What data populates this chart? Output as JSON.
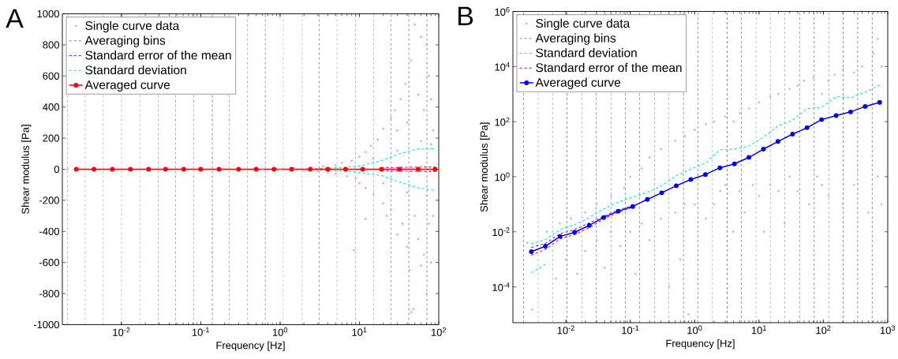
{
  "chart_data": [
    {
      "type": "line",
      "title": "A",
      "xlabel": "Frequency [Hz]",
      "ylabel": "Shear modulus [Pa]",
      "log": "x",
      "legend": "top left",
      "xlim": [
        0.0018,
        100
      ],
      "ylim": [
        -1000,
        1000
      ],
      "xticks": [
        {
          "value": 0.01,
          "label": "10$^{-2}$"
        },
        {
          "value": 0.1,
          "label": "10$^{-1}$"
        },
        {
          "value": 1,
          "label": "10$^{0}$"
        },
        {
          "value": 10,
          "label": "10$^{1}$"
        },
        {
          "value": 100,
          "label": "10$^{2}$"
        }
      ],
      "yticks": [
        -1000,
        -800,
        -600,
        -400,
        -200,
        0,
        200,
        400,
        600,
        800,
        1000
      ],
      "ref_lines": [
        {
          "axis": "x",
          "value": 0.0021,
          "label": "Averaging bins",
          "color": "#000000",
          "line_style": "dashed"
        },
        {
          "axis": "x",
          "value": 0.0035,
          "color": "#000000",
          "line_style": "dashed"
        },
        {
          "axis": "x",
          "value": 0.0059,
          "color": "#000000",
          "line_style": "dashed"
        },
        {
          "axis": "x",
          "value": 0.01,
          "color": "#000000",
          "line_style": "dashed"
        },
        {
          "axis": "x",
          "value": 0.017,
          "color": "#000000",
          "line_style": "dashed"
        },
        {
          "axis": "x",
          "value": 0.029,
          "color": "#000000",
          "line_style": "dashed"
        },
        {
          "axis": "x",
          "value": 0.048,
          "color": "#000000",
          "line_style": "dashed"
        },
        {
          "axis": "x",
          "value": 0.081,
          "color": "#000000",
          "line_style": "dashed"
        },
        {
          "axis": "x",
          "value": 0.14,
          "color": "#000000",
          "line_style": "dashed"
        },
        {
          "axis": "x",
          "value": 0.23,
          "color": "#000000",
          "line_style": "dashed"
        },
        {
          "axis": "x",
          "value": 0.39,
          "color": "#000000",
          "line_style": "dashed"
        },
        {
          "axis": "x",
          "value": 0.65,
          "color": "#000000",
          "line_style": "dashed"
        },
        {
          "axis": "x",
          "value": 1.1,
          "color": "#000000",
          "line_style": "dashed"
        },
        {
          "axis": "x",
          "value": 1.9,
          "color": "#000000",
          "line_style": "dashed"
        },
        {
          "axis": "x",
          "value": 3.1,
          "color": "#000000",
          "line_style": "dashed"
        },
        {
          "axis": "x",
          "value": 5.2,
          "color": "#000000",
          "line_style": "dashed"
        },
        {
          "axis": "x",
          "value": 8.9,
          "color": "#000000",
          "line_style": "dashed"
        },
        {
          "axis": "x",
          "value": 15,
          "color": "#000000",
          "line_style": "dashed"
        },
        {
          "axis": "x",
          "value": 25,
          "color": "#000000",
          "line_style": "dashed"
        },
        {
          "axis": "x",
          "value": 42,
          "color": "#000000",
          "line_style": "dashed"
        },
        {
          "axis": "x",
          "value": 71,
          "color": "#000000",
          "line_style": "dashed"
        }
      ],
      "series": [
        {
          "name": "Single curve data",
          "type": "scatter",
          "color": "#ff99cc",
          "marker": "circle",
          "x": [
            0.0021,
            0.6,
            1,
            1.5,
            2,
            2.5,
            3,
            3.5,
            4,
            5,
            5,
            6,
            7,
            8,
            9,
            10,
            10,
            12,
            12,
            14,
            15,
            17,
            20,
            20,
            22,
            25,
            25,
            28,
            30,
            30,
            33,
            35,
            38,
            40,
            40,
            43,
            45,
            48,
            50,
            50,
            55,
            55,
            60,
            60,
            65,
            65,
            70,
            70,
            75,
            75,
            80,
            80,
            85,
            85,
            12,
            8.5,
            45,
            30,
            40,
            60,
            70,
            80,
            20,
            15
          ],
          "values": [
            0,
            2,
            -3,
            5,
            -8,
            10,
            -12,
            18,
            -20,
            25,
            -30,
            40,
            -45,
            55,
            -60,
            80,
            -90,
            110,
            -120,
            150,
            -160,
            190,
            -220,
            260,
            -300,
            330,
            -260,
            380,
            -420,
            250,
            450,
            -350,
            550,
            -500,
            300,
            -650,
            700,
            -900,
            930,
            -300,
            480,
            -450,
            850,
            -620,
            380,
            -550,
            800,
            -800,
            600,
            -350,
            450,
            -600,
            250,
            -300,
            -320,
            -520,
            -920,
            120,
            -150,
            180,
            -170,
            160,
            -90,
            70
          ]
        },
        {
          "name": "Standard error of the mean",
          "color": "#cc00cc",
          "line_style": "dashed",
          "x": [
            19,
            32,
            55,
            90
          ],
          "values": [
            10,
            12,
            14,
            15
          ]
        },
        {
          "color": "#cc00cc",
          "line_style": "dashed",
          "x": [
            19,
            32,
            55,
            90
          ],
          "values": [
            -10,
            -12,
            -14,
            -15
          ]
        },
        {
          "name": "Standard deviation",
          "color": "#00e5ee",
          "line_style": "dashed",
          "x": [
            1.4,
            2.4,
            4.0,
            6.7,
            11,
            19,
            32,
            55,
            90
          ],
          "values": [
            0,
            2,
            7,
            12,
            24,
            55,
            100,
            130,
            132
          ]
        },
        {
          "color": "#00e5ee",
          "line_style": "dashed",
          "x": [
            1.4,
            2.4,
            4.0,
            6.7,
            11,
            19,
            32,
            55,
            90
          ],
          "values": [
            0,
            -2,
            -7,
            -12,
            -24,
            -40,
            -82,
            -120,
            -136
          ]
        },
        {
          "name": "Averaged curve",
          "color": "#ff0000",
          "marker": "circle",
          "line_style": "solid",
          "x": [
            0.0027,
            0.0045,
            0.0077,
            0.013,
            0.022,
            0.036,
            0.061,
            0.1,
            0.17,
            0.3,
            0.5,
            0.84,
            1.4,
            2.4,
            4.0,
            6.7,
            11,
            19,
            32,
            55,
            90
          ],
          "values": [
            0,
            0,
            0,
            0,
            0,
            0,
            0,
            0,
            0,
            0,
            0,
            0,
            0,
            0,
            0,
            0,
            0,
            0,
            0,
            0,
            0
          ]
        }
      ]
    },
    {
      "type": "line",
      "title": "B",
      "xlabel": "Frequency [Hz]",
      "ylabel": "Shear modulus [Pa]",
      "log": "xy",
      "legend": "top left",
      "xlim": [
        0.0015,
        1000
      ],
      "ylim": [
        5e-06,
        1000000
      ],
      "xticks": [
        {
          "value": 0.01,
          "label": "10$^{-2}$"
        },
        {
          "value": 0.1,
          "label": "10$^{-1}$"
        },
        {
          "value": 1,
          "label": "10$^{0}$"
        },
        {
          "value": 10,
          "label": "10$^{1}$"
        },
        {
          "value": 100,
          "label": "10$^{2}$"
        },
        {
          "value": 1000,
          "label": "10$^{3}$"
        }
      ],
      "yticks": [
        {
          "value": 0.0001,
          "label": "10$^{-4}$"
        },
        {
          "value": 0.01,
          "label": "10$^{-2}$"
        },
        {
          "value": 1,
          "label": "10$^{0}$"
        },
        {
          "value": 100,
          "label": "10$^{2}$"
        },
        {
          "value": 10000,
          "label": "10$^{4}$"
        },
        {
          "value": 1000000,
          "label": "10$^{6}$"
        }
      ],
      "ref_lines": [
        {
          "axis": "x",
          "value": 0.0022,
          "label": "Averaging bins",
          "color": "#000000",
          "line_style": "dashed"
        },
        {
          "axis": "x",
          "value": 0.0037,
          "color": "#000000",
          "line_style": "dashed"
        },
        {
          "axis": "x",
          "value": 0.0062,
          "color": "#000000",
          "line_style": "dashed"
        },
        {
          "axis": "x",
          "value": 0.0104,
          "color": "#000000",
          "line_style": "dashed"
        },
        {
          "axis": "x",
          "value": 0.0176,
          "color": "#000000",
          "line_style": "dashed"
        },
        {
          "axis": "x",
          "value": 0.0295,
          "color": "#000000",
          "line_style": "dashed"
        },
        {
          "axis": "x",
          "value": 0.05,
          "color": "#000000",
          "line_style": "dashed"
        },
        {
          "axis": "x",
          "value": 0.084,
          "color": "#000000",
          "line_style": "dashed"
        },
        {
          "axis": "x",
          "value": 0.14,
          "color": "#000000",
          "line_style": "dashed"
        },
        {
          "axis": "x",
          "value": 0.24,
          "color": "#000000",
          "line_style": "dashed"
        },
        {
          "axis": "x",
          "value": 0.4,
          "color": "#000000",
          "line_style": "dashed"
        },
        {
          "axis": "x",
          "value": 0.67,
          "color": "#000000",
          "line_style": "dashed"
        },
        {
          "axis": "x",
          "value": 1.12,
          "color": "#000000",
          "line_style": "dashed"
        },
        {
          "axis": "x",
          "value": 1.89,
          "color": "#000000",
          "line_style": "dashed"
        },
        {
          "axis": "x",
          "value": 3.2,
          "color": "#000000",
          "line_style": "dashed"
        },
        {
          "axis": "x",
          "value": 5.3,
          "color": "#000000",
          "line_style": "dashed"
        },
        {
          "axis": "x",
          "value": 9.0,
          "color": "#000000",
          "line_style": "dashed"
        },
        {
          "axis": "x",
          "value": 15,
          "color": "#000000",
          "line_style": "dashed"
        },
        {
          "axis": "x",
          "value": 25,
          "color": "#000000",
          "line_style": "dashed"
        },
        {
          "axis": "x",
          "value": 43,
          "color": "#000000",
          "line_style": "dashed"
        },
        {
          "axis": "x",
          "value": 72,
          "color": "#000000",
          "line_style": "dashed"
        },
        {
          "axis": "x",
          "value": 121,
          "color": "#000000",
          "line_style": "dashed"
        },
        {
          "axis": "x",
          "value": 203,
          "color": "#000000",
          "line_style": "dashed"
        },
        {
          "axis": "x",
          "value": 341,
          "color": "#000000",
          "line_style": "dashed"
        },
        {
          "axis": "x",
          "value": 574,
          "color": "#000000",
          "line_style": "dashed"
        }
      ],
      "series": [
        {
          "name": "Single curve data",
          "type": "scatter",
          "color": "#aabff5",
          "marker": "circle",
          "x": [
            0.0025,
            0.003,
            0.004,
            0.005,
            0.007,
            0.008,
            0.01,
            0.012,
            0.015,
            0.02,
            0.02,
            0.03,
            0.03,
            0.04,
            0.05,
            0.05,
            0.07,
            0.08,
            0.1,
            0.1,
            0.12,
            0.15,
            0.15,
            0.2,
            0.2,
            0.3,
            0.3,
            0.4,
            0.5,
            0.5,
            0.6,
            0.7,
            0.7,
            0.8,
            1,
            1,
            1.5,
            1.5,
            2,
            2,
            2.5,
            3,
            3,
            4,
            4,
            5,
            5,
            6,
            7,
            8,
            10,
            10,
            12,
            15,
            15,
            20,
            20,
            25,
            30,
            30,
            40,
            40,
            50,
            60,
            70,
            80,
            95,
            95,
            120,
            120,
            150,
            200,
            200,
            300,
            300,
            400,
            500,
            600,
            700,
            700,
            800,
            800
          ],
          "values": [
            0.004,
            1.5e-05,
            0.0005,
            0.01,
            0.0002,
            0.02,
            0.001,
            0.03,
            0.0003,
            0.05,
            0.002,
            0.1,
            0.005,
            0.0005,
            0.2,
            0.01,
            0.003,
            0.4,
            0.01,
            1,
            0.0003,
            2,
            0.02,
            5,
            0.005,
            10,
            0.03,
            0.0001,
            20,
            0.05,
            0.001,
            30,
            0.1,
            1e-05,
            50,
            0.1,
            80,
            0.03,
            100,
            0.1,
            0.3,
            150,
            0.5,
            100,
            0.01,
            200,
            0.3,
            0.05,
            300,
            0.5,
            500,
            0.2,
            0.01,
            800,
            0.5,
            1000,
            0.3,
            0.02,
            1500,
            1,
            2000,
            0.3,
            3000,
            0.1,
            4000,
            1,
            1000,
            0.5,
            3000,
            0.2,
            5000,
            0.1,
            8000,
            6000,
            0.5,
            10000,
            0.05,
            30000,
            100000,
            1,
            0.1,
            10000
          ]
        },
        {
          "name": "Standard deviation",
          "color": "#00e5ee",
          "line_style": "dashed",
          "x": [
            0.0029,
            0.0048,
            0.0081,
            0.0136,
            0.023,
            0.0386,
            0.0649,
            0.109,
            0.184,
            0.308,
            0.519,
            0.873,
            1.47,
            2.47,
            4.15,
            6.97,
            11.7,
            19.7,
            33.2,
            55.7,
            93.8,
            158,
            265,
            446,
            750
          ],
          "values": [
            0.0036,
            0.0052,
            0.012,
            0.018,
            0.033,
            0.068,
            0.12,
            0.18,
            0.27,
            0.47,
            1.1,
            1.9,
            3.1,
            9.5,
            10,
            13,
            27,
            69,
            112,
            295,
            331,
            813,
            724,
            1175,
            2089
          ]
        },
        {
          "color": "#00e5ee",
          "line_style": "dashed",
          "x": [
            0.0029,
            0.0048
          ],
          "values": [
            0.00033,
            0.00066
          ]
        },
        {
          "name": "Standard error of the mean",
          "color": "#cc00cc",
          "line_style": "dashed",
          "x": [
            0.0029,
            0.0048,
            0.0081,
            0.0136,
            0.023,
            0.0386,
            0.0649,
            0.109
          ],
          "values": [
            0.0027,
            0.0038,
            0.0085,
            0.012,
            0.021,
            0.037,
            0.062,
            0.088
          ]
        },
        {
          "color": "#cc00cc",
          "line_style": "dashed",
          "x": [
            0.0029,
            0.0048,
            0.0081,
            0.0136,
            0.023,
            0.0386,
            0.0649,
            0.109
          ],
          "values": [
            0.0014,
            0.0023,
            0.0055,
            0.0079,
            0.014,
            0.029,
            0.051,
            0.078
          ]
        },
        {
          "name": "Averaged curve",
          "color": "#0000ff",
          "marker": "circle",
          "line_style": "solid",
          "x": [
            0.0029,
            0.0048,
            0.0081,
            0.0136,
            0.023,
            0.0386,
            0.0649,
            0.109,
            0.184,
            0.308,
            0.519,
            0.873,
            1.47,
            2.47,
            4.15,
            6.97,
            11.7,
            19.7,
            33.2,
            55.7,
            93.8,
            158,
            265,
            446,
            750
          ],
          "values": [
            0.0019,
            0.003,
            0.0068,
            0.0095,
            0.017,
            0.033,
            0.056,
            0.083,
            0.15,
            0.26,
            0.47,
            0.79,
            1.2,
            2.1,
            2.9,
            5.0,
            10,
            19,
            35,
            60,
            118,
            166,
            225,
            355,
            500
          ]
        }
      ]
    }
  ]
}
